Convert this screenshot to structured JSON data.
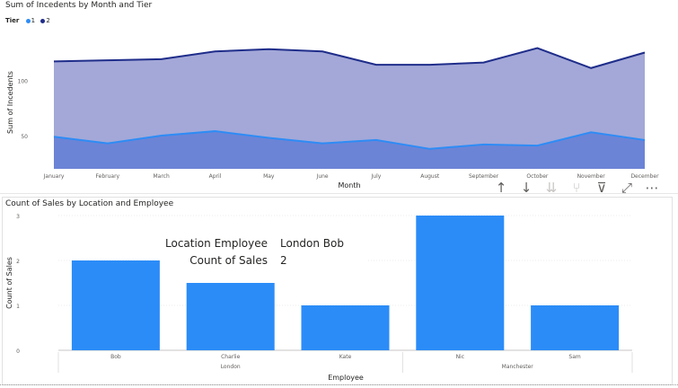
{
  "chart_data": [
    {
      "type": "area",
      "title": "Sum of Incedents by Month and Tier",
      "xlabel": "Month",
      "ylabel": "Sum of Incedents",
      "legend_title": "Tier",
      "categories": [
        "January",
        "February",
        "March",
        "April",
        "May",
        "June",
        "July",
        "August",
        "September",
        "October",
        "November",
        "December"
      ],
      "y_ticks": [
        50,
        100
      ],
      "ylim": [
        20,
        140
      ],
      "series": [
        {
          "name": "1",
          "color": "#5b8df5",
          "values": [
            49,
            43,
            50,
            54,
            48,
            43,
            46,
            38,
            42,
            41,
            53,
            46
          ]
        },
        {
          "name": "2",
          "color": "#1f2d8a",
          "values": [
            117,
            118,
            119,
            126,
            128,
            126,
            114,
            114,
            116,
            129,
            111,
            125
          ]
        }
      ],
      "colors": {
        "area_bottom": "#6c84d6",
        "area_top": "#a3a8d8",
        "line1": "#2e8cf5",
        "line2": "#1f2d8a"
      }
    },
    {
      "type": "bar",
      "title": "Count of Sales by Location and Employee",
      "xlabel": "Employee",
      "ylabel": "Count of Sales",
      "categories": [
        "Bob",
        "Charlie",
        "Kate",
        "Nic",
        "Sam"
      ],
      "groups": [
        {
          "name": "London",
          "members": [
            "Bob",
            "Charlie",
            "Kate"
          ]
        },
        {
          "name": "Manchester",
          "members": [
            "Nic",
            "Sam"
          ]
        }
      ],
      "values": [
        2,
        1.5,
        1,
        3,
        1
      ],
      "y_ticks": [
        0,
        1,
        2,
        3
      ],
      "ylim": [
        0,
        3
      ],
      "colors": {
        "bar": "#2b8cf8"
      }
    }
  ],
  "tooltip": {
    "rows": [
      {
        "label": "Location Employee",
        "value": "London Bob"
      },
      {
        "label": "Count of Sales",
        "value": "2"
      }
    ]
  },
  "toolbar": {
    "icons": [
      "arrow-up-icon",
      "arrow-down-icon",
      "double-arrow-down-icon",
      "fork-arrow-down-icon",
      "filter-icon",
      "expand-icon",
      "more-options-icon"
    ],
    "glyphs": [
      "↑",
      "↓",
      "⇊",
      "⑂",
      "⊽",
      "⤢",
      "⋯"
    ]
  }
}
